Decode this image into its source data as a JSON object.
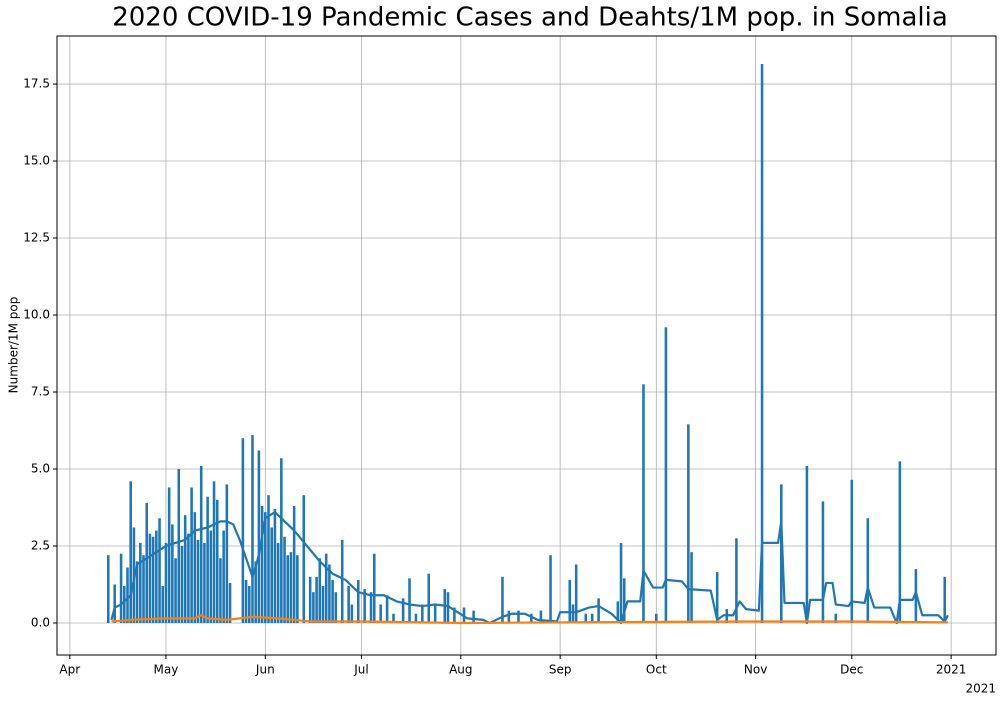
{
  "chart_data": {
    "type": "bar",
    "title": "2020 COVID-19 Pandemic Cases and Deahts/1M pop. in Somalia",
    "y_label": "Number/1M pop",
    "x_offset_label": "2021",
    "xlim": [
      "2020-03-28",
      "2021-01-15"
    ],
    "ylim": [
      -1.04,
      19.06
    ],
    "xticks": [
      {
        "value": "2020-04-01",
        "label": "Apr"
      },
      {
        "value": "2020-05-01",
        "label": "May"
      },
      {
        "value": "2020-06-01",
        "label": "Jun"
      },
      {
        "value": "2020-07-01",
        "label": "Jul"
      },
      {
        "value": "2020-08-01",
        "label": "Aug"
      },
      {
        "value": "2020-09-01",
        "label": "Sep"
      },
      {
        "value": "2020-10-01",
        "label": "Oct"
      },
      {
        "value": "2020-11-01",
        "label": "Nov"
      },
      {
        "value": "2020-12-01",
        "label": "Dec"
      },
      {
        "value": "2021-01-01",
        "label": "2021"
      }
    ],
    "yticks": [
      {
        "value": 0,
        "label": "0.0"
      },
      2.5,
      {
        "value": 5,
        "label": "5.0"
      },
      7.5,
      {
        "value": 10,
        "label": "10.0"
      },
      12.5,
      {
        "value": 15,
        "label": "15.0"
      },
      17.5
    ],
    "grid": true,
    "series": [
      {
        "type": "bar",
        "color": "#1f77b4",
        "x": [
          "2020-04-13",
          "2020-04-15",
          "2020-04-17",
          "2020-04-18",
          "2020-04-19",
          "2020-04-20",
          "2020-04-21",
          "2020-04-22",
          "2020-04-23",
          "2020-04-24",
          "2020-04-25",
          "2020-04-26",
          "2020-04-27",
          "2020-04-28",
          "2020-04-29",
          "2020-04-30",
          "2020-05-01",
          "2020-05-02",
          "2020-05-03",
          "2020-05-04",
          "2020-05-05",
          "2020-05-06",
          "2020-05-07",
          "2020-05-08",
          "2020-05-09",
          "2020-05-10",
          "2020-05-11",
          "2020-05-12",
          "2020-05-13",
          "2020-05-14",
          "2020-05-15",
          "2020-05-16",
          "2020-05-17",
          "2020-05-18",
          "2020-05-19",
          "2020-05-20",
          "2020-05-21",
          "2020-05-25",
          "2020-05-26",
          "2020-05-27",
          "2020-05-28",
          "2020-05-29",
          "2020-05-30",
          "2020-05-31",
          "2020-06-01",
          "2020-06-02",
          "2020-06-03",
          "2020-06-04",
          "2020-06-05",
          "2020-06-06",
          "2020-06-07",
          "2020-06-08",
          "2020-06-09",
          "2020-06-10",
          "2020-06-11",
          "2020-06-13",
          "2020-06-15",
          "2020-06-16",
          "2020-06-17",
          "2020-06-18",
          "2020-06-19",
          "2020-06-20",
          "2020-06-21",
          "2020-06-22",
          "2020-06-23",
          "2020-06-25",
          "2020-06-27",
          "2020-06-28",
          "2020-06-30",
          "2020-07-02",
          "2020-07-04",
          "2020-07-05",
          "2020-07-07",
          "2020-07-09",
          "2020-07-11",
          "2020-07-14",
          "2020-07-16",
          "2020-07-18",
          "2020-07-20",
          "2020-07-22",
          "2020-07-24",
          "2020-07-27",
          "2020-07-28",
          "2020-07-30",
          "2020-08-02",
          "2020-08-05",
          "2020-08-14",
          "2020-08-16",
          "2020-08-19",
          "2020-08-23",
          "2020-08-26",
          "2020-08-29",
          "2020-09-04",
          "2020-09-05",
          "2020-09-06",
          "2020-09-09",
          "2020-09-11",
          "2020-09-13",
          "2020-09-19",
          "2020-09-20",
          "2020-09-21",
          "2020-09-27",
          "2020-10-01",
          "2020-10-04",
          "2020-10-11",
          "2020-10-12",
          "2020-10-20",
          "2020-10-23",
          "2020-10-26",
          "2020-11-03",
          "2020-11-09",
          "2020-11-17",
          "2020-11-22",
          "2020-11-26",
          "2020-12-01",
          "2020-12-06",
          "2020-12-16",
          "2020-12-21",
          "2020-12-30"
        ],
        "values": [
          2.2,
          1.25,
          2.25,
          1.2,
          1.8,
          4.6,
          3.1,
          2.0,
          2.6,
          2.2,
          3.9,
          2.9,
          2.8,
          3.0,
          3.4,
          1.2,
          2.6,
          4.4,
          3.2,
          2.1,
          5.0,
          2.5,
          3.5,
          2.9,
          4.4,
          3.6,
          2.7,
          5.1,
          2.6,
          4.1,
          3.0,
          4.6,
          4.0,
          2.1,
          3.0,
          4.5,
          1.3,
          6.0,
          1.4,
          1.2,
          6.1,
          2.0,
          5.6,
          3.8,
          3.6,
          4.15,
          3.1,
          3.7,
          2.6,
          5.35,
          2.8,
          2.2,
          2.3,
          3.8,
          2.2,
          4.15,
          1.5,
          1.0,
          1.5,
          2.1,
          1.2,
          2.25,
          1.9,
          1.4,
          1.0,
          2.7,
          1.2,
          0.6,
          1.4,
          1.1,
          1.0,
          2.25,
          0.6,
          0.9,
          0.3,
          0.8,
          1.45,
          0.3,
          0.6,
          1.6,
          0.6,
          1.1,
          1.0,
          0.5,
          0.5,
          0.4,
          1.5,
          0.4,
          0.4,
          0.3,
          0.4,
          2.2,
          1.4,
          0.6,
          1.9,
          0.3,
          0.3,
          0.8,
          0.7,
          2.6,
          1.45,
          7.75,
          0.3,
          9.6,
          6.45,
          2.3,
          1.65,
          0.45,
          2.75,
          18.15,
          4.5,
          5.1,
          3.95,
          0.3,
          4.65,
          3.4,
          5.25,
          1.75,
          1.5
        ]
      },
      {
        "type": "line",
        "color": "#1f77b4",
        "x": [
          "2020-04-14",
          "2020-04-15",
          "2020-04-17",
          "2020-04-20",
          "2020-04-22",
          "2020-04-25",
          "2020-04-28",
          "2020-05-01",
          "2020-05-04",
          "2020-05-07",
          "2020-05-10",
          "2020-05-14",
          "2020-05-18",
          "2020-05-20",
          "2020-05-22",
          "2020-05-24",
          "2020-05-26",
          "2020-05-28",
          "2020-05-30",
          "2020-06-01",
          "2020-06-04",
          "2020-06-07",
          "2020-06-10",
          "2020-06-14",
          "2020-06-18",
          "2020-06-22",
          "2020-06-26",
          "2020-06-30",
          "2020-07-04",
          "2020-07-08",
          "2020-07-12",
          "2020-07-16",
          "2020-07-20",
          "2020-07-24",
          "2020-07-28",
          "2020-07-31",
          "2020-08-03",
          "2020-08-08",
          "2020-08-10",
          "2020-08-14",
          "2020-08-17",
          "2020-08-21",
          "2020-08-25",
          "2020-08-31",
          "2020-09-01",
          "2020-09-06",
          "2020-09-10",
          "2020-09-13",
          "2020-09-17",
          "2020-09-20",
          "2020-09-22",
          "2020-09-26",
          "2020-09-27",
          "2020-09-30",
          "2020-10-03",
          "2020-10-04",
          "2020-10-09",
          "2020-10-11",
          "2020-10-18",
          "2020-10-20",
          "2020-10-22",
          "2020-10-25",
          "2020-10-27",
          "2020-10-29",
          "2020-11-02",
          "2020-11-03",
          "2020-11-08",
          "2020-11-09",
          "2020-11-10",
          "2020-11-16",
          "2020-11-17",
          "2020-11-18",
          "2020-11-22",
          "2020-11-23",
          "2020-11-25",
          "2020-11-26",
          "2020-11-30",
          "2020-12-01",
          "2020-12-05",
          "2020-12-06",
          "2020-12-08",
          "2020-12-13",
          "2020-12-15",
          "2020-12-16",
          "2020-12-20",
          "2020-12-21",
          "2020-12-23",
          "2020-12-28",
          "2020-12-30",
          "2020-12-31"
        ],
        "values": [
          0.1,
          0.5,
          0.6,
          0.9,
          1.9,
          2.1,
          2.3,
          2.5,
          2.6,
          2.7,
          3.0,
          3.1,
          3.3,
          3.3,
          3.2,
          2.7,
          2.1,
          1.5,
          2.2,
          3.4,
          3.6,
          3.3,
          3.0,
          2.5,
          2.0,
          1.6,
          1.4,
          1.0,
          0.9,
          0.9,
          0.7,
          0.6,
          0.55,
          0.6,
          0.55,
          0.35,
          0.15,
          0.1,
          0.0,
          0.2,
          0.3,
          0.3,
          0.1,
          0.05,
          0.35,
          0.35,
          0.5,
          0.55,
          0.3,
          0.0,
          0.7,
          0.7,
          1.7,
          1.15,
          1.15,
          1.4,
          1.35,
          1.1,
          1.05,
          0.1,
          0.25,
          0.25,
          0.7,
          0.45,
          0.4,
          2.6,
          2.6,
          3.3,
          0.65,
          0.65,
          0.0,
          0.75,
          0.75,
          1.3,
          1.3,
          0.6,
          0.55,
          0.7,
          0.65,
          1.15,
          0.5,
          0.5,
          0.0,
          0.75,
          0.75,
          1.0,
          0.25,
          0.25,
          0.05,
          0.25
        ]
      },
      {
        "type": "line",
        "color": "#ff7f0e",
        "x": [
          "2020-04-14",
          "2020-04-20",
          "2020-05-01",
          "2020-05-10",
          "2020-05-12",
          "2020-05-14",
          "2020-05-20",
          "2020-05-28",
          "2020-06-05",
          "2020-06-15",
          "2020-07-01",
          "2020-08-01",
          "2020-10-28",
          "2020-11-30",
          "2020-12-31"
        ],
        "values": [
          0.05,
          0.1,
          0.15,
          0.15,
          0.25,
          0.15,
          0.1,
          0.2,
          0.15,
          0.05,
          0.05,
          0.0,
          0.05,
          0.05,
          0.02
        ]
      }
    ]
  }
}
